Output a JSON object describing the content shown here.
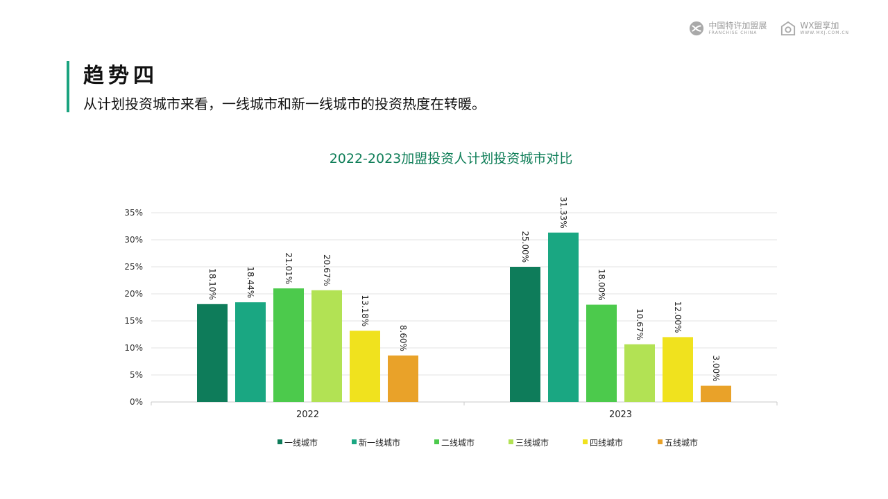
{
  "header": {
    "logo1": {
      "cn": "中国特许加盟展",
      "en": "FRANCHISE CHINA"
    },
    "logo2": {
      "cn": "WX盟享加",
      "en": "WWW.MXJ.COM.CN"
    }
  },
  "section": {
    "heading": "趋势四",
    "subtitle": "从计划投资城市来看，一线城市和新一线城市的投资热度在转暖。"
  },
  "colors": {
    "accent": "#1aa37f",
    "title": "#0f7e58",
    "series": [
      "#0e7c5a",
      "#1aa782",
      "#4cca4c",
      "#b2e254",
      "#f0e21e",
      "#e9a229"
    ]
  },
  "chart_data": {
    "type": "bar",
    "title": "2022-2023加盟投资人计划投资城市对比",
    "categories": [
      "2022",
      "2023"
    ],
    "series": [
      {
        "name": "一线城市",
        "values": [
          18.1,
          25.0
        ]
      },
      {
        "name": "新一线城市",
        "values": [
          18.44,
          31.33
        ]
      },
      {
        "name": "二线城市",
        "values": [
          21.01,
          18.0
        ]
      },
      {
        "name": "三线城市",
        "values": [
          20.67,
          10.67
        ]
      },
      {
        "name": "四线城市",
        "values": [
          13.18,
          12.0
        ]
      },
      {
        "name": "五线城市",
        "values": [
          8.6,
          3.0
        ]
      }
    ],
    "yticks": [
      "0%",
      "5%",
      "10%",
      "15%",
      "20%",
      "25%",
      "30%",
      "35%"
    ],
    "ylim": [
      0,
      35
    ],
    "grid": true,
    "legend": "bottom",
    "data_labels": true,
    "label_suffix": "%"
  }
}
